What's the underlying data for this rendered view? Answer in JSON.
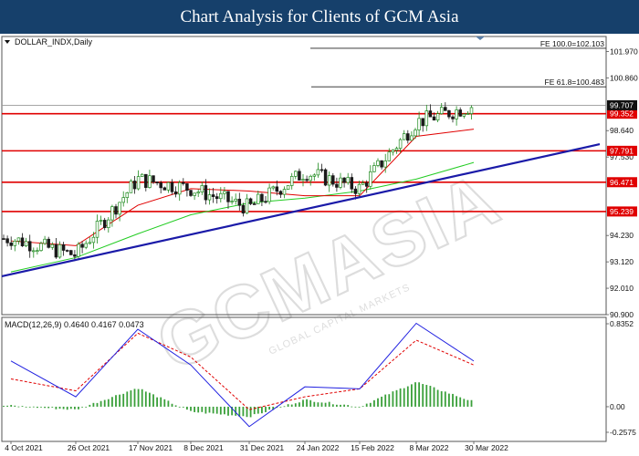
{
  "banner": {
    "title": "Chart Analysis for Clients of GCM Asia"
  },
  "watermark": {
    "text": "GCMASIA",
    "subtext": "GLOBAL CAPITAL MARKETS"
  },
  "chart_data": [
    {
      "type": "candlestick",
      "title": "DOLLAR_INDX,Daily",
      "ylim": [
        90.9,
        102.6
      ],
      "y_ticks": [
        101.97,
        100.86,
        98.64,
        97.53,
        94.23,
        93.12,
        92.01,
        90.9
      ],
      "x_ticks": [
        "4 Oct 2021",
        "26 Oct 2021",
        "17 Nov 2021",
        "8 Dec 2021",
        "31 Dec 2021",
        "24 Jan 2022",
        "15 Feb 2022",
        "8 Mar 2022",
        "30 Mar 2022"
      ],
      "current_price": 99.707,
      "support_resistance": [
        99.352,
        97.791,
        96.471,
        95.239
      ],
      "fibonacci": [
        {
          "label": "FE 100.0=102.103",
          "value": 102.103
        },
        {
          "label": "FE 61.8=100.483",
          "value": 100.483
        }
      ],
      "trendline": {
        "from": [
          "4 Oct 2021",
          92.6
        ],
        "to": [
          "30 Mar 2022",
          96.9
        ]
      },
      "ma_fast": [
        [
          "4 Oct 2021",
          94.0
        ],
        [
          "26 Oct 2021",
          93.8
        ],
        [
          "17 Nov 2021",
          95.5
        ],
        [
          "8 Dec 2021",
          96.2
        ],
        [
          "31 Dec 2021",
          96.1
        ],
        [
          "24 Jan 2022",
          95.9
        ],
        [
          "15 Feb 2022",
          95.9
        ],
        [
          "8 Mar 2022",
          98.4
        ],
        [
          "30 Mar 2022",
          98.7
        ]
      ],
      "ma_slow": [
        [
          "4 Oct 2021",
          92.7
        ],
        [
          "26 Oct 2021",
          93.3
        ],
        [
          "17 Nov 2021",
          94.3
        ],
        [
          "8 Dec 2021",
          95.1
        ],
        [
          "31 Dec 2021",
          95.6
        ],
        [
          "24 Jan 2022",
          95.8
        ],
        [
          "15 Feb 2022",
          96.1
        ],
        [
          "8 Mar 2022",
          96.6
        ],
        [
          "30 Mar 2022",
          97.3
        ]
      ],
      "price_path": [
        [
          "4 Oct 2021",
          94.1
        ],
        [
          "26 Oct 2021",
          93.4
        ],
        [
          "17 Nov 2021",
          96.6
        ],
        [
          "8 Dec 2021",
          96.2
        ],
        [
          "31 Dec 2021",
          95.4
        ],
        [
          "24 Jan 2022",
          96.9
        ],
        [
          "15 Feb 2022",
          96.2
        ],
        [
          "8 Mar 2022",
          99.0
        ],
        [
          "30 Mar 2022",
          99.7
        ]
      ]
    },
    {
      "type": "macd",
      "title": "MACD(12,26,9) 0.4640 0.4167 0.0473",
      "ylim": [
        -0.2575,
        0.8352
      ],
      "y_ticks": [
        0.8352,
        0.0,
        -0.2575
      ],
      "macd": [
        [
          "4 Oct 2021",
          0.46
        ],
        [
          "26 Oct 2021",
          0.1
        ],
        [
          "17 Nov 2021",
          0.78
        ],
        [
          "8 Dec 2021",
          0.42
        ],
        [
          "31 Dec 2021",
          -0.2
        ],
        [
          "24 Jan 2022",
          0.2
        ],
        [
          "15 Feb 2022",
          0.18
        ],
        [
          "8 Mar 2022",
          0.84
        ],
        [
          "30 Mar 2022",
          0.46
        ]
      ],
      "signal": [
        [
          "4 Oct 2021",
          0.28
        ],
        [
          "26 Oct 2021",
          0.16
        ],
        [
          "17 Nov 2021",
          0.74
        ],
        [
          "8 Dec 2021",
          0.5
        ],
        [
          "31 Dec 2021",
          -0.03
        ],
        [
          "24 Jan 2022",
          0.1
        ],
        [
          "15 Feb 2022",
          0.18
        ],
        [
          "8 Mar 2022",
          0.67
        ],
        [
          "30 Mar 2022",
          0.42
        ]
      ],
      "histogram": [
        [
          "4 Oct 2021",
          0.01
        ],
        [
          "26 Oct 2021",
          -0.03
        ],
        [
          "17 Nov 2021",
          0.19
        ],
        [
          "8 Dec 2021",
          -0.05
        ],
        [
          "31 Dec 2021",
          -0.1
        ],
        [
          "24 Jan 2022",
          0.07
        ],
        [
          "15 Feb 2022",
          0.0
        ],
        [
          "8 Mar 2022",
          0.25
        ],
        [
          "30 Mar 2022",
          0.05
        ]
      ]
    }
  ],
  "colors": {
    "bull": "#1e8a1e",
    "bear": "#1a1a1a",
    "support": "#e00000",
    "trend": "#1a1aa8",
    "ma_fast": "#e00000",
    "ma_slow": "#22cc22",
    "macd": "#2020e0",
    "signal": "#e00000",
    "hist": "#3aa03a"
  }
}
